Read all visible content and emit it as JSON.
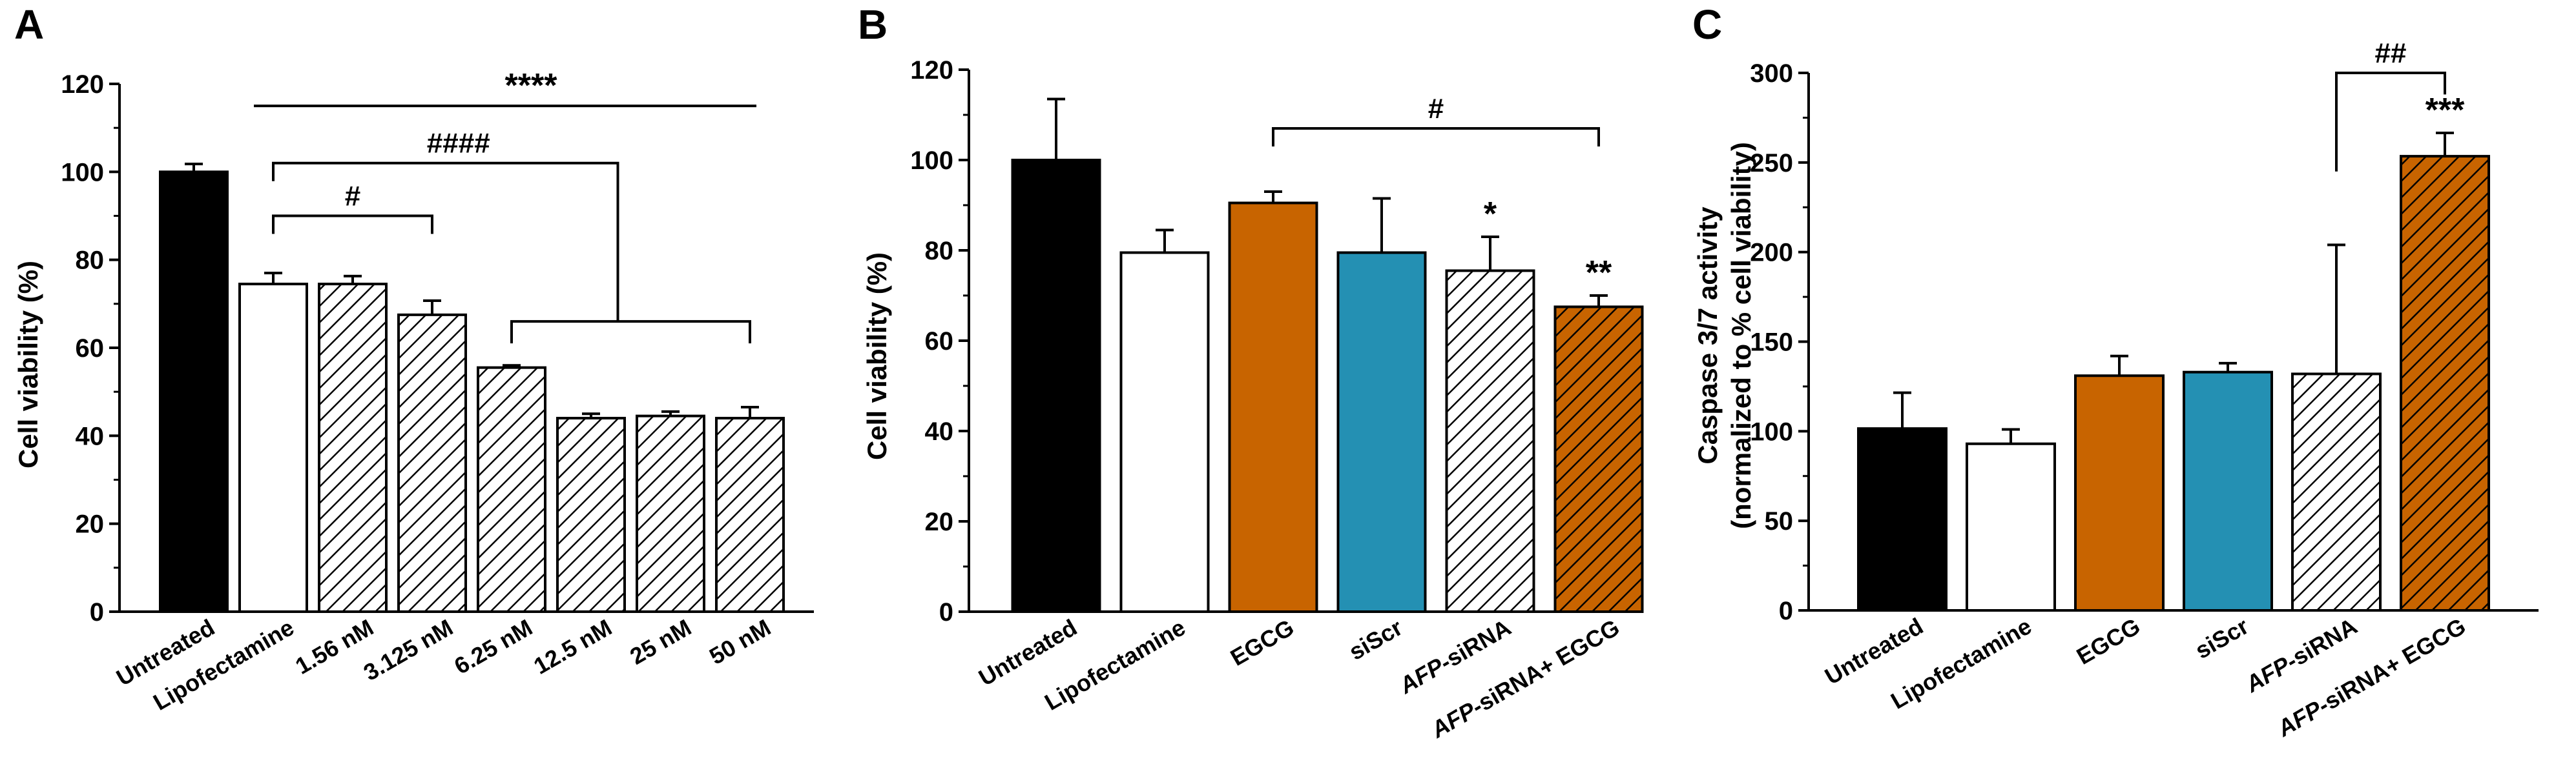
{
  "colors": {
    "black": "#000000",
    "white": "#ffffff",
    "orange": "#c86400",
    "teal": "#2490b3",
    "hatch_bg_white": "#ffffff",
    "hatch_bg_orange": "#c86400"
  },
  "chart_data": [
    {
      "panel": "A",
      "type": "bar",
      "ylabel": "Cell viability (%)",
      "ylim": [
        0,
        120
      ],
      "yticks": [
        "0",
        "20",
        "40",
        "60",
        "80",
        "100",
        "120"
      ],
      "categories": [
        "Untreated",
        "Lipofectamine",
        "1.56 nM",
        "3.125 nM",
        "6.25 nM",
        "12.5 nM",
        "25 nM",
        "50 nM"
      ],
      "values": [
        100,
        74.5,
        74.5,
        67.5,
        55.5,
        44,
        44.5,
        44
      ],
      "errors": [
        1.8,
        2.5,
        1.8,
        3.2,
        0.5,
        1.0,
        1.0,
        2.5
      ],
      "fills": [
        "black",
        "white",
        "hatch-white",
        "hatch-white",
        "hatch-white",
        "hatch-white",
        "hatch-white",
        "hatch-white"
      ],
      "annotations": [
        {
          "label": "****",
          "kind": "line",
          "from": 1,
          "to": 7,
          "y": 115
        },
        {
          "label": "####",
          "kind": "bracket-group",
          "from": 1,
          "to": 4,
          "y": 102
        },
        {
          "label": "#",
          "kind": "bracket",
          "from": 1,
          "to": 3,
          "y": 90
        }
      ]
    },
    {
      "panel": "B",
      "type": "bar",
      "ylabel": "Cell viability (%)",
      "ylim": [
        0,
        120
      ],
      "yticks": [
        "0",
        "20",
        "40",
        "60",
        "80",
        "100",
        "120"
      ],
      "categories": [
        "Untreated",
        "Lipofectamine",
        "EGCG",
        "siScr",
        "AFP-siRNA",
        "AFP-siRNA+ EGCG"
      ],
      "values": [
        100,
        79.5,
        90.5,
        79.5,
        75.5,
        67.5
      ],
      "errors": [
        13.5,
        5,
        2.5,
        12,
        7.5,
        2.5
      ],
      "fills": [
        "black",
        "white",
        "orange",
        "teal",
        "hatch-white",
        "hatch-orange"
      ],
      "annotations": [
        {
          "label": "#",
          "kind": "bracket",
          "from": 2,
          "to": 5,
          "y": 107
        },
        {
          "label": "*",
          "kind": "star",
          "at": 4
        },
        {
          "label": "**",
          "kind": "star",
          "at": 5
        }
      ]
    },
    {
      "panel": "C",
      "type": "bar",
      "ylabel": "Caspase 3/7 activity",
      "ylabel2": "(normalized to % cell viability)",
      "ylim": [
        0,
        300
      ],
      "yticks": [
        "0",
        "50",
        "100",
        "150",
        "200",
        "250",
        "300"
      ],
      "categories": [
        "Untreated",
        "Lipofectamine",
        "EGCG",
        "siScr",
        "AFP-siRNA",
        "AFP-siRNA+ EGCG"
      ],
      "values": [
        101.5,
        93,
        131,
        133,
        132,
        253.5
      ],
      "errors": [
        20,
        8,
        11,
        5,
        72,
        13
      ],
      "fills": [
        "black",
        "white",
        "orange",
        "teal",
        "hatch-white",
        "hatch-orange"
      ],
      "annotations": [
        {
          "label": "##",
          "kind": "bracket-down",
          "from": 4,
          "to": 5,
          "y": 300
        },
        {
          "label": "***",
          "kind": "star",
          "at": 5
        }
      ]
    }
  ]
}
